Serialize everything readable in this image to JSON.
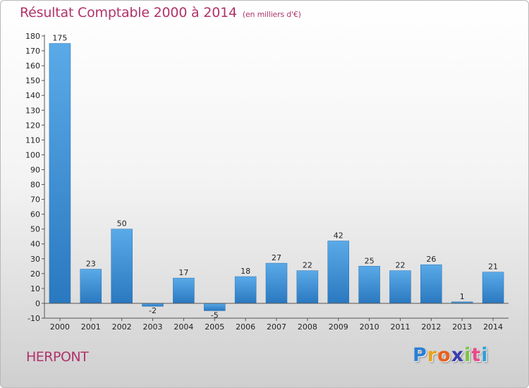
{
  "chart_data": {
    "type": "bar",
    "title": "Résultat Comptable 2000 à 2014",
    "subtitle": "(en milliers d'€)",
    "categories": [
      "2000",
      "2001",
      "2002",
      "2003",
      "2004",
      "2005",
      "2006",
      "2007",
      "2008",
      "2009",
      "2010",
      "2011",
      "2012",
      "2013",
      "2014"
    ],
    "values": [
      175,
      23,
      50,
      -2,
      17,
      -5,
      18,
      27,
      22,
      42,
      25,
      22,
      26,
      1,
      21
    ],
    "ylim": [
      -10,
      180
    ],
    "yticks": [
      -10,
      0,
      10,
      20,
      30,
      40,
      50,
      60,
      70,
      80,
      90,
      100,
      110,
      120,
      130,
      140,
      150,
      160,
      170,
      180
    ],
    "xlabel": "",
    "ylabel": "",
    "grid": false,
    "bar_color": "#3f8fd2"
  },
  "footer": {
    "commune": "HERPONT",
    "logo": {
      "letters": [
        "P",
        "r",
        "o",
        "x",
        "i",
        "t",
        "i"
      ],
      "colors": [
        "#2a7fd4",
        "#e8a21b",
        "#e8601b",
        "#3c3cb0",
        "#7cc242",
        "#e84b8a",
        "#2a9fd4"
      ]
    }
  }
}
